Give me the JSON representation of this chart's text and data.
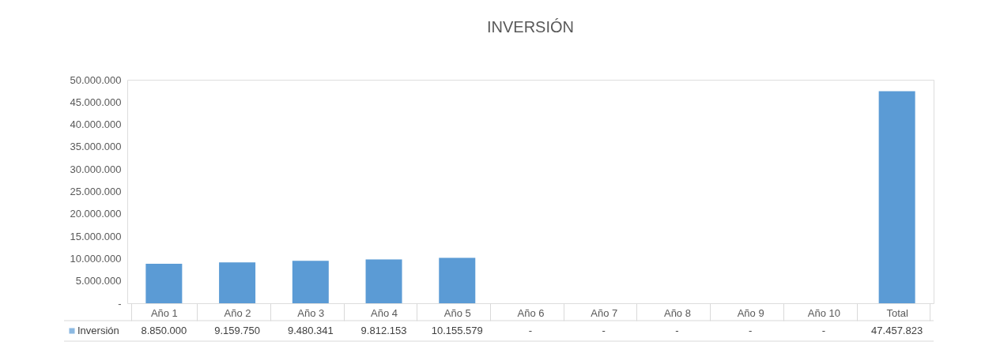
{
  "chart_data": {
    "type": "bar",
    "title": "INVERSIÓN",
    "categories": [
      "Año 1",
      "Año 2",
      "Año 3",
      "Año 4",
      "Año 5",
      "Año 6",
      "Año 7",
      "Año 8",
      "Año 9",
      "Año 10",
      "Total"
    ],
    "series": [
      {
        "name": "Inversión",
        "color": "#5b9bd5",
        "values": [
          8850000,
          9159750,
          9480341,
          9812153,
          10155579,
          0,
          0,
          0,
          0,
          0,
          47457823
        ],
        "value_labels": [
          "8.850.000",
          "9.159.750",
          "9.480.341",
          "9.812.153",
          "10.155.579",
          "-",
          "-",
          "-",
          "-",
          "-",
          "47.457.823"
        ]
      }
    ],
    "ylim": [
      0,
      50000000
    ],
    "yticks": [
      {
        "value": 0,
        "label": "-"
      },
      {
        "value": 5000000,
        "label": "5.000.000"
      },
      {
        "value": 10000000,
        "label": "10.000.000"
      },
      {
        "value": 15000000,
        "label": "15.000.000"
      },
      {
        "value": 20000000,
        "label": "20.000.000"
      },
      {
        "value": 25000000,
        "label": "25.000.000"
      },
      {
        "value": 30000000,
        "label": "30.000.000"
      },
      {
        "value": 35000000,
        "label": "35.000.000"
      },
      {
        "value": 40000000,
        "label": "40.000.000"
      },
      {
        "value": 45000000,
        "label": "45.000.000"
      },
      {
        "value": 50000000,
        "label": "50.000.000"
      }
    ],
    "grid": false,
    "legend": "bottom left"
  }
}
